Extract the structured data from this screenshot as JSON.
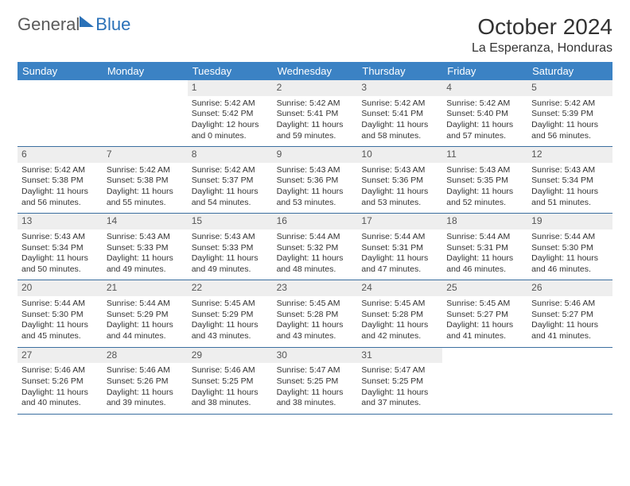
{
  "logo": {
    "general": "General",
    "blue": "Blue"
  },
  "title": "October 2024",
  "location": "La Esperanza, Honduras",
  "header_bg": "#3b82c4",
  "header_fg": "#ffffff",
  "daynum_bg": "#eeeeee",
  "divider_color": "#3b6fa0",
  "text_color": "#333333",
  "font_size_body": 10.5,
  "font_size_title": 28,
  "font_size_location": 16,
  "font_size_dow": 13,
  "dow": [
    "Sunday",
    "Monday",
    "Tuesday",
    "Wednesday",
    "Thursday",
    "Friday",
    "Saturday"
  ],
  "weeks": [
    [
      {
        "n": "",
        "empty": true
      },
      {
        "n": "",
        "empty": true
      },
      {
        "n": "1",
        "sr": "Sunrise: 5:42 AM",
        "ss": "Sunset: 5:42 PM",
        "d1": "Daylight: 12 hours",
        "d2": "and 0 minutes."
      },
      {
        "n": "2",
        "sr": "Sunrise: 5:42 AM",
        "ss": "Sunset: 5:41 PM",
        "d1": "Daylight: 11 hours",
        "d2": "and 59 minutes."
      },
      {
        "n": "3",
        "sr": "Sunrise: 5:42 AM",
        "ss": "Sunset: 5:41 PM",
        "d1": "Daylight: 11 hours",
        "d2": "and 58 minutes."
      },
      {
        "n": "4",
        "sr": "Sunrise: 5:42 AM",
        "ss": "Sunset: 5:40 PM",
        "d1": "Daylight: 11 hours",
        "d2": "and 57 minutes."
      },
      {
        "n": "5",
        "sr": "Sunrise: 5:42 AM",
        "ss": "Sunset: 5:39 PM",
        "d1": "Daylight: 11 hours",
        "d2": "and 56 minutes."
      }
    ],
    [
      {
        "n": "6",
        "sr": "Sunrise: 5:42 AM",
        "ss": "Sunset: 5:38 PM",
        "d1": "Daylight: 11 hours",
        "d2": "and 56 minutes."
      },
      {
        "n": "7",
        "sr": "Sunrise: 5:42 AM",
        "ss": "Sunset: 5:38 PM",
        "d1": "Daylight: 11 hours",
        "d2": "and 55 minutes."
      },
      {
        "n": "8",
        "sr": "Sunrise: 5:42 AM",
        "ss": "Sunset: 5:37 PM",
        "d1": "Daylight: 11 hours",
        "d2": "and 54 minutes."
      },
      {
        "n": "9",
        "sr": "Sunrise: 5:43 AM",
        "ss": "Sunset: 5:36 PM",
        "d1": "Daylight: 11 hours",
        "d2": "and 53 minutes."
      },
      {
        "n": "10",
        "sr": "Sunrise: 5:43 AM",
        "ss": "Sunset: 5:36 PM",
        "d1": "Daylight: 11 hours",
        "d2": "and 53 minutes."
      },
      {
        "n": "11",
        "sr": "Sunrise: 5:43 AM",
        "ss": "Sunset: 5:35 PM",
        "d1": "Daylight: 11 hours",
        "d2": "and 52 minutes."
      },
      {
        "n": "12",
        "sr": "Sunrise: 5:43 AM",
        "ss": "Sunset: 5:34 PM",
        "d1": "Daylight: 11 hours",
        "d2": "and 51 minutes."
      }
    ],
    [
      {
        "n": "13",
        "sr": "Sunrise: 5:43 AM",
        "ss": "Sunset: 5:34 PM",
        "d1": "Daylight: 11 hours",
        "d2": "and 50 minutes."
      },
      {
        "n": "14",
        "sr": "Sunrise: 5:43 AM",
        "ss": "Sunset: 5:33 PM",
        "d1": "Daylight: 11 hours",
        "d2": "and 49 minutes."
      },
      {
        "n": "15",
        "sr": "Sunrise: 5:43 AM",
        "ss": "Sunset: 5:33 PM",
        "d1": "Daylight: 11 hours",
        "d2": "and 49 minutes."
      },
      {
        "n": "16",
        "sr": "Sunrise: 5:44 AM",
        "ss": "Sunset: 5:32 PM",
        "d1": "Daylight: 11 hours",
        "d2": "and 48 minutes."
      },
      {
        "n": "17",
        "sr": "Sunrise: 5:44 AM",
        "ss": "Sunset: 5:31 PM",
        "d1": "Daylight: 11 hours",
        "d2": "and 47 minutes."
      },
      {
        "n": "18",
        "sr": "Sunrise: 5:44 AM",
        "ss": "Sunset: 5:31 PM",
        "d1": "Daylight: 11 hours",
        "d2": "and 46 minutes."
      },
      {
        "n": "19",
        "sr": "Sunrise: 5:44 AM",
        "ss": "Sunset: 5:30 PM",
        "d1": "Daylight: 11 hours",
        "d2": "and 46 minutes."
      }
    ],
    [
      {
        "n": "20",
        "sr": "Sunrise: 5:44 AM",
        "ss": "Sunset: 5:30 PM",
        "d1": "Daylight: 11 hours",
        "d2": "and 45 minutes."
      },
      {
        "n": "21",
        "sr": "Sunrise: 5:44 AM",
        "ss": "Sunset: 5:29 PM",
        "d1": "Daylight: 11 hours",
        "d2": "and 44 minutes."
      },
      {
        "n": "22",
        "sr": "Sunrise: 5:45 AM",
        "ss": "Sunset: 5:29 PM",
        "d1": "Daylight: 11 hours",
        "d2": "and 43 minutes."
      },
      {
        "n": "23",
        "sr": "Sunrise: 5:45 AM",
        "ss": "Sunset: 5:28 PM",
        "d1": "Daylight: 11 hours",
        "d2": "and 43 minutes."
      },
      {
        "n": "24",
        "sr": "Sunrise: 5:45 AM",
        "ss": "Sunset: 5:28 PM",
        "d1": "Daylight: 11 hours",
        "d2": "and 42 minutes."
      },
      {
        "n": "25",
        "sr": "Sunrise: 5:45 AM",
        "ss": "Sunset: 5:27 PM",
        "d1": "Daylight: 11 hours",
        "d2": "and 41 minutes."
      },
      {
        "n": "26",
        "sr": "Sunrise: 5:46 AM",
        "ss": "Sunset: 5:27 PM",
        "d1": "Daylight: 11 hours",
        "d2": "and 41 minutes."
      }
    ],
    [
      {
        "n": "27",
        "sr": "Sunrise: 5:46 AM",
        "ss": "Sunset: 5:26 PM",
        "d1": "Daylight: 11 hours",
        "d2": "and 40 minutes."
      },
      {
        "n": "28",
        "sr": "Sunrise: 5:46 AM",
        "ss": "Sunset: 5:26 PM",
        "d1": "Daylight: 11 hours",
        "d2": "and 39 minutes."
      },
      {
        "n": "29",
        "sr": "Sunrise: 5:46 AM",
        "ss": "Sunset: 5:25 PM",
        "d1": "Daylight: 11 hours",
        "d2": "and 38 minutes."
      },
      {
        "n": "30",
        "sr": "Sunrise: 5:47 AM",
        "ss": "Sunset: 5:25 PM",
        "d1": "Daylight: 11 hours",
        "d2": "and 38 minutes."
      },
      {
        "n": "31",
        "sr": "Sunrise: 5:47 AM",
        "ss": "Sunset: 5:25 PM",
        "d1": "Daylight: 11 hours",
        "d2": "and 37 minutes."
      },
      {
        "n": "",
        "empty": true
      },
      {
        "n": "",
        "empty": true
      }
    ]
  ]
}
